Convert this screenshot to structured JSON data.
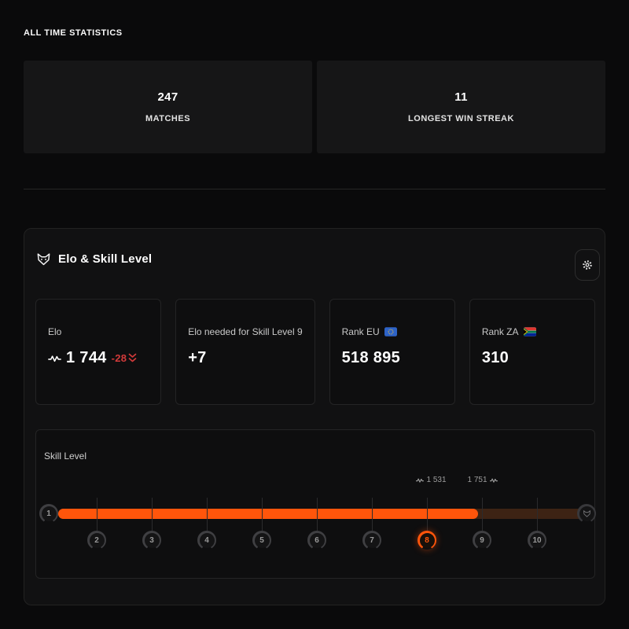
{
  "heading": "ALL TIME STATISTICS",
  "summary_cards": [
    {
      "value": "247",
      "label": "MATCHES"
    },
    {
      "value": "11",
      "label": "LONGEST WIN STREAK"
    }
  ],
  "panel": {
    "title": "Elo & Skill Level",
    "title_icon": "wolf-icon",
    "settings_icon": "gear-icon",
    "cards": {
      "elo": {
        "label": "Elo",
        "value": "1 744",
        "delta": "-28",
        "value_icon": "elo-trend-icon",
        "delta_icon": "double-chevron-down-icon"
      },
      "needed": {
        "label": "Elo needed for Skill Level 9",
        "value": "+7"
      },
      "rank_eu": {
        "label": "Rank EU",
        "value": "518 895",
        "flag": "eu-flag"
      },
      "rank_za": {
        "label": "Rank ZA",
        "value": "310",
        "flag": "za-flag"
      }
    },
    "skill": {
      "label": "Skill Level",
      "current_level": "8",
      "range_start": "1 531",
      "range_end": "1 751",
      "progress_percent": 80,
      "levels": [
        "1",
        "2",
        "3",
        "4",
        "5",
        "6",
        "7",
        "8",
        "9",
        "10"
      ]
    }
  },
  "colors": {
    "accent_orange": "#ff550b",
    "delta_red": "#d23a3a",
    "bar_unfilled": "#3d2314",
    "page_background": "#0a0a0b"
  }
}
